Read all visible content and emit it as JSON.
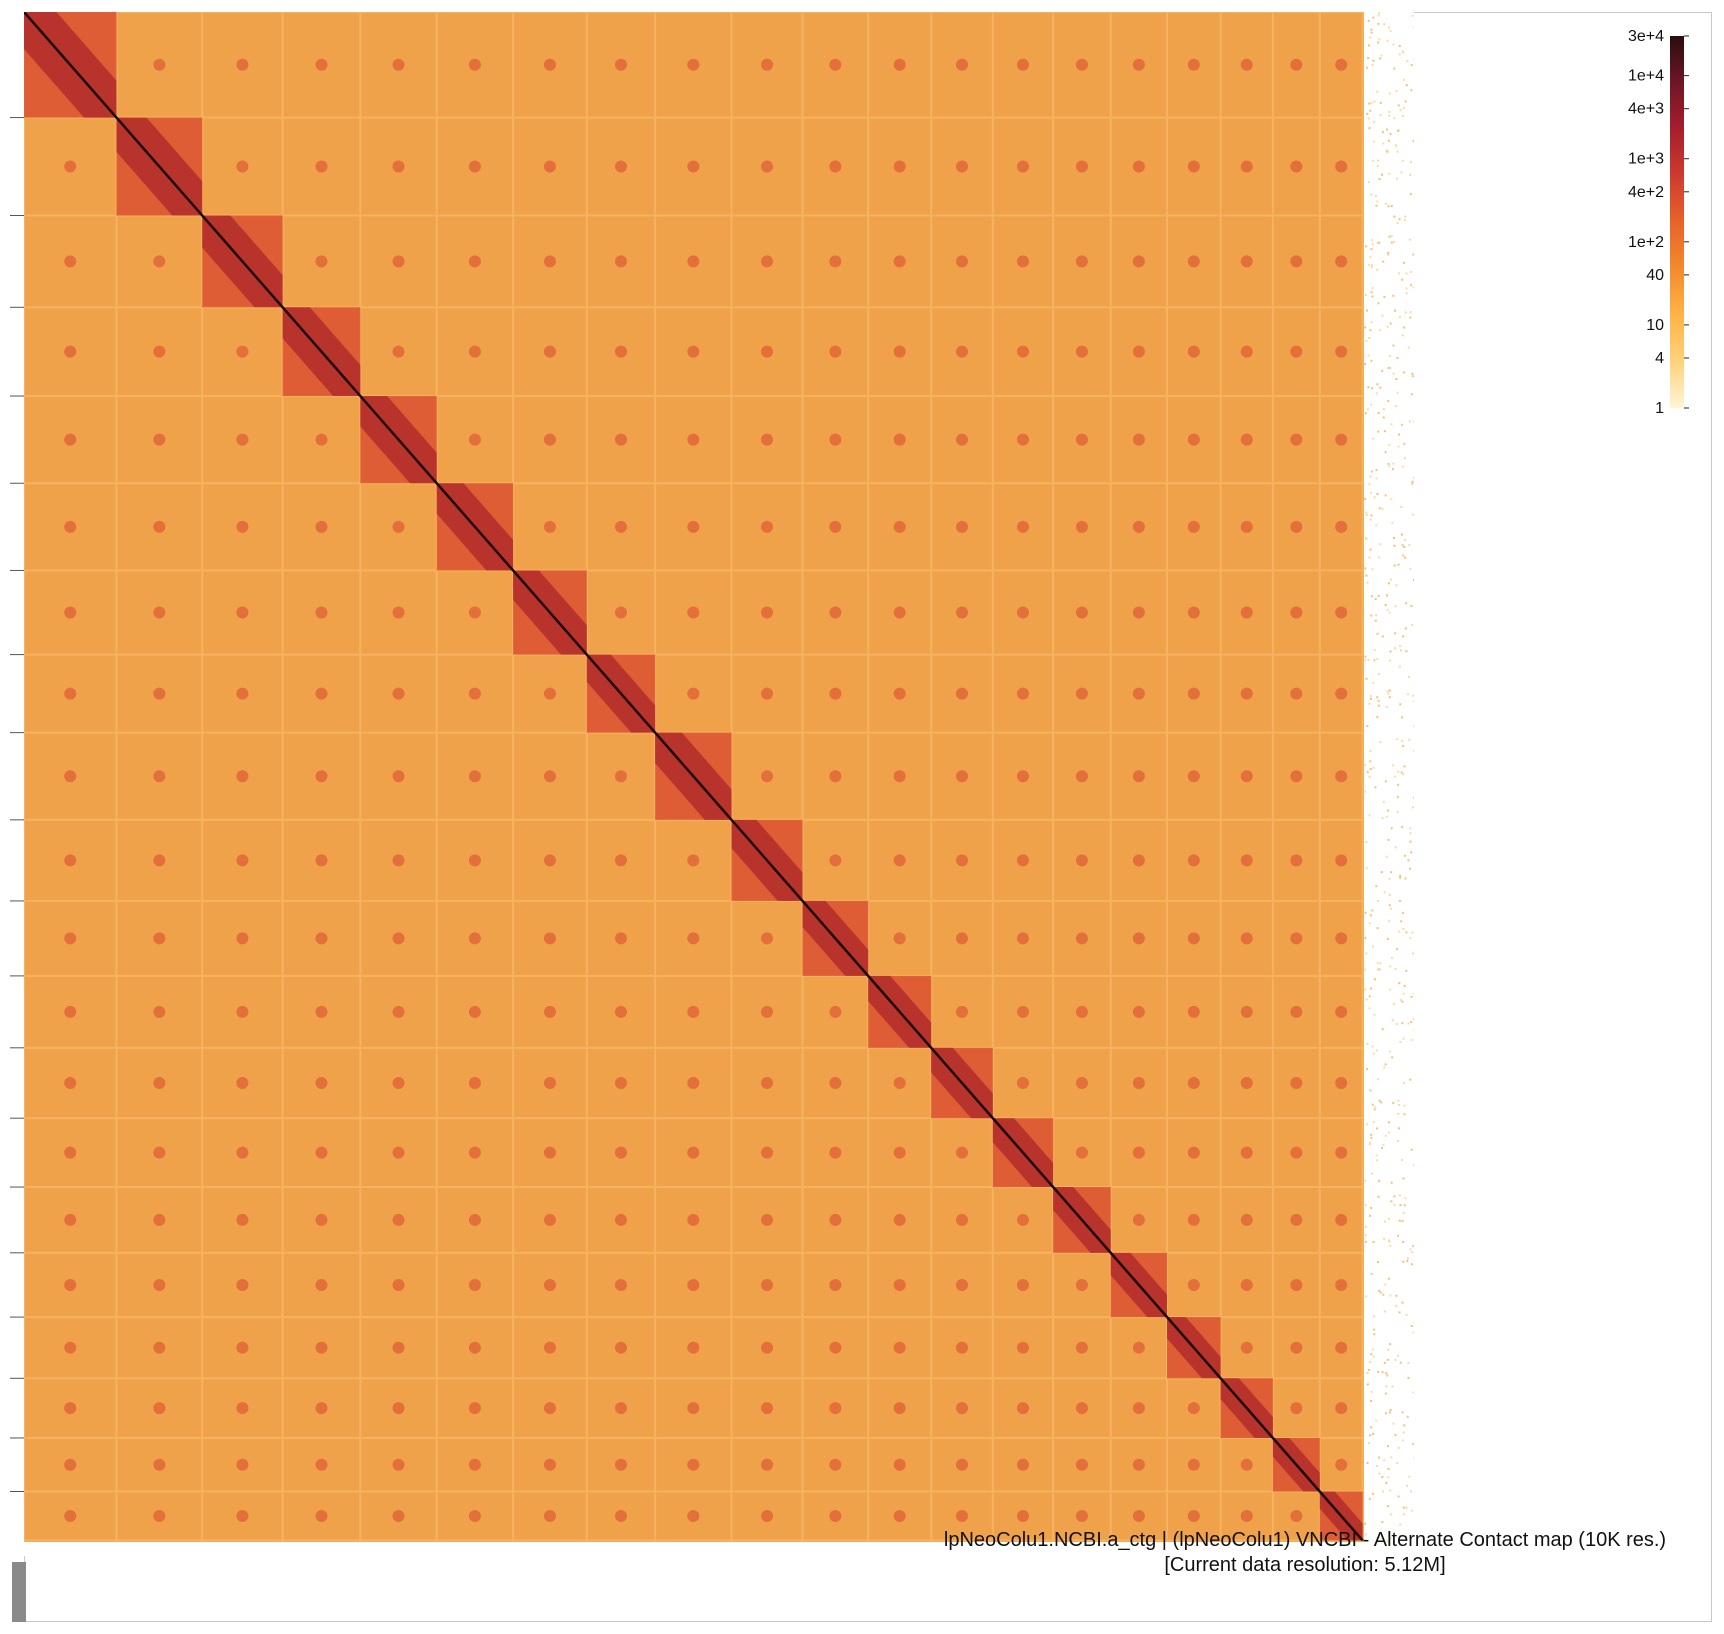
{
  "caption": {
    "line1": "lpNeoColu1.NCBI.a_ctg | (lpNeoColu1) VNCBI - Alternate Contact map (10K res.)",
    "line2": "[Current data resolution: 5.12M]"
  },
  "chart_data": {
    "type": "heatmap",
    "title": "lpNeoColu1.NCBI.a_ctg | (lpNeoColu1) VNCBI - Alternate Contact map (10K res.)",
    "subtitle": "[Current data resolution: 5.12M]",
    "scale": "log",
    "value_range": [
      1,
      30000
    ],
    "colorbar": {
      "labels": [
        "3e+4",
        "1e+4",
        "4e+3",
        "1e+3",
        "4e+2",
        "1e+2",
        "40",
        "10",
        "4",
        "1"
      ],
      "values": [
        30000,
        10000,
        4000,
        1000,
        400,
        100,
        40,
        10,
        4,
        1
      ],
      "colors": [
        "#fff5d6",
        "#ffd27a",
        "#ffb347",
        "#f28a2e",
        "#e8632a",
        "#cf3a2f",
        "#a51f2d",
        "#6e1626",
        "#2b0d0d"
      ]
    },
    "background_color": "#f0a24a",
    "diagonal_color": "#1a0606",
    "scaffold_boundaries_fraction": [
      0.0,
      0.069,
      0.133,
      0.193,
      0.251,
      0.308,
      0.365,
      0.42,
      0.471,
      0.528,
      0.581,
      0.63,
      0.677,
      0.723,
      0.768,
      0.811,
      0.853,
      0.893,
      0.932,
      0.967,
      0.999
    ],
    "grid": false
  }
}
